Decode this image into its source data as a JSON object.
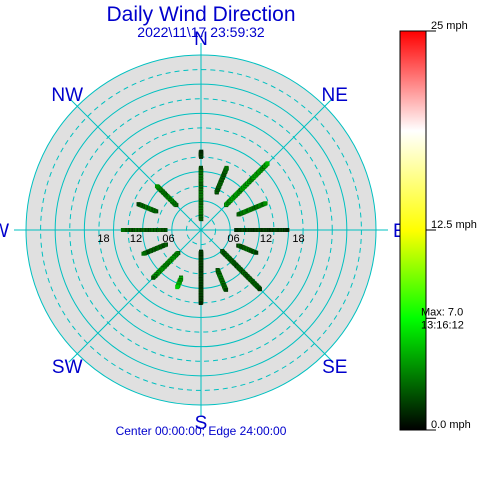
{
  "chart": {
    "title": "Daily Wind Direction",
    "subtitle": "2022\\11\\17 23:59:32",
    "footer": "Center 00:00:00; Edge 24:00:00",
    "colors": {
      "title": "#0000cc",
      "grid": "#00c0c0",
      "plot_background": "#e0e0e0",
      "outer_ring": "#00c0c0"
    }
  },
  "chart_data": {
    "type": "scatter",
    "coordinate_system": "polar",
    "radial_axis": "time of day (hours)",
    "radial_range": [
      0,
      24
    ],
    "radial_tick_labels": [
      "06",
      "12",
      "18"
    ],
    "angular_axis": "wind direction",
    "compass_labels": [
      "N",
      "NE",
      "E",
      "SE",
      "S",
      "SW",
      "W",
      "NW"
    ],
    "color_scale": {
      "min_label": "0.0 mph",
      "mid_label": "12.5 mph",
      "max_label": "25 mph",
      "max_marker_label": "Max: 7.0",
      "max_marker_time": "13:16:12",
      "max_marker_value": 7.0,
      "scale_max": 25,
      "stops": [
        "#000000",
        "#00ff00",
        "#ffff00",
        "#ffffff",
        "#ff0000"
      ]
    },
    "series": [
      {
        "direction_deg": 0,
        "hour_start": 2.0,
        "hour_end": 11.5,
        "speed_mph": 3.5
      },
      {
        "direction_deg": 0,
        "hour_start": 13.5,
        "hour_end": 14.5,
        "speed_mph": 2.0
      },
      {
        "direction_deg": 22.5,
        "hour_start": 7.5,
        "hour_end": 12.5,
        "speed_mph": 3.0
      },
      {
        "direction_deg": 45,
        "hour_start": 6.5,
        "hour_end": 17.5,
        "speed_mph": 5.0
      },
      {
        "direction_deg": 67.5,
        "hour_start": 7.5,
        "hour_end": 13.0,
        "speed_mph": 4.0
      },
      {
        "direction_deg": 90,
        "hour_start": 6.5,
        "hour_end": 16.0,
        "speed_mph": 2.0
      },
      {
        "direction_deg": 112.5,
        "hour_start": 7.5,
        "hour_end": 11.0,
        "speed_mph": 3.0
      },
      {
        "direction_deg": 135,
        "hour_start": 5.5,
        "hour_end": 15.5,
        "speed_mph": 3.0
      },
      {
        "direction_deg": 157.5,
        "hour_start": 8.0,
        "hour_end": 12.0,
        "speed_mph": 3.5
      },
      {
        "direction_deg": 180,
        "hour_start": 4.0,
        "hour_end": 13.5,
        "speed_mph": 2.0
      },
      {
        "direction_deg": 202.5,
        "hour_start": 9.5,
        "hour_end": 11.5,
        "speed_mph": 5.5
      },
      {
        "direction_deg": 225,
        "hour_start": 6.0,
        "hour_end": 12.5,
        "speed_mph": 4.5
      },
      {
        "direction_deg": 247.5,
        "hour_start": 7.0,
        "hour_end": 11.5,
        "speed_mph": 3.0
      },
      {
        "direction_deg": 270,
        "hour_start": 6.5,
        "hour_end": 14.5,
        "speed_mph": 3.0
      },
      {
        "direction_deg": 292.5,
        "hour_start": 9.0,
        "hour_end": 12.5,
        "speed_mph": 3.5
      },
      {
        "direction_deg": 315,
        "hour_start": 6.5,
        "hour_end": 11.5,
        "speed_mph": 4.0
      }
    ]
  }
}
